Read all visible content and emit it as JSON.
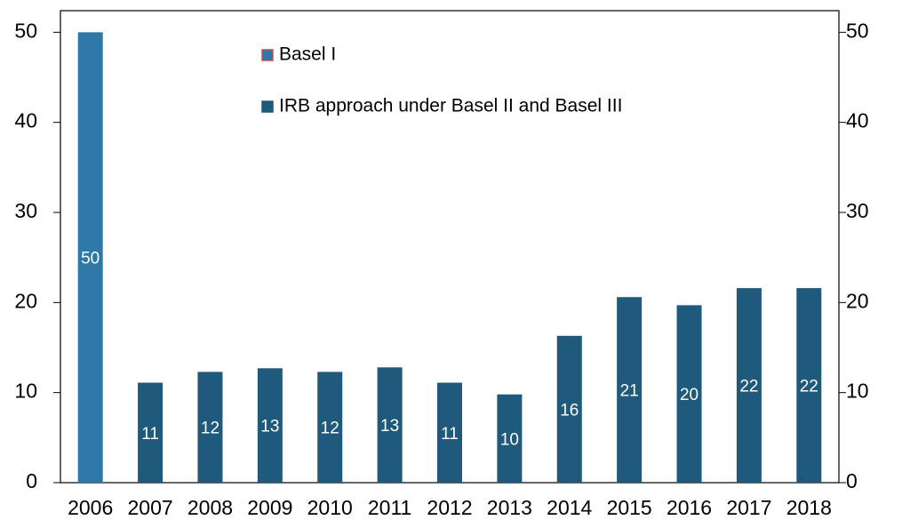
{
  "chart_data": {
    "type": "bar",
    "categories": [
      "2006",
      "2007",
      "2008",
      "2009",
      "2010",
      "2011",
      "2012",
      "2013",
      "2014",
      "2015",
      "2016",
      "2017",
      "2018"
    ],
    "series": [
      {
        "name": "Basel I",
        "color": "#2e78a8",
        "border": "#c0504d",
        "values": [
          50,
          null,
          null,
          null,
          null,
          null,
          null,
          null,
          null,
          null,
          null,
          null,
          null
        ],
        "value_labels": [
          "50",
          null,
          null,
          null,
          null,
          null,
          null,
          null,
          null,
          null,
          null,
          null,
          null
        ]
      },
      {
        "name": "IRB approach under Basel II and Basel III",
        "color": "#1f5a7c",
        "values": [
          null,
          11.1,
          12.3,
          12.7,
          12.3,
          12.8,
          11.1,
          9.8,
          16.3,
          20.6,
          19.7,
          21.6,
          21.6
        ],
        "value_labels": [
          null,
          "11",
          "12",
          "13",
          "12",
          "13",
          "11",
          "10",
          "16",
          "21",
          "20",
          "22",
          "22"
        ]
      }
    ],
    "ylim": [
      0,
      52.4
    ],
    "yticks": [
      0,
      10,
      20,
      30,
      40,
      50
    ],
    "right_axis_labels": true
  }
}
